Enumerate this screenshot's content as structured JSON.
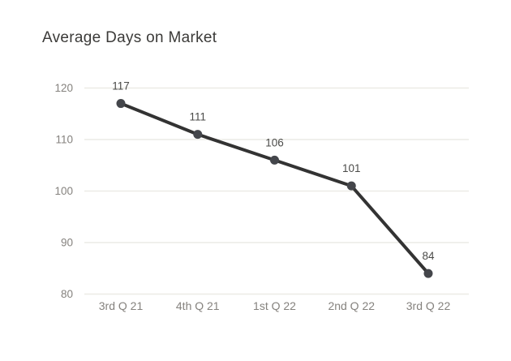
{
  "title": "Average Days on Market",
  "colors": {
    "background": "#ffffff",
    "title": "#3b3a38",
    "grid": "#ecebe6",
    "line": "#333333",
    "marker": "#44464b",
    "axis_label": "#85827e",
    "data_label": "#4b4b49"
  },
  "chart_data": {
    "type": "line",
    "title": "Average Days on Market",
    "categories": [
      "3rd Q 21",
      "4th Q 21",
      "1st Q 22",
      "2nd Q 22",
      "3rd Q 22"
    ],
    "values": [
      117,
      111,
      106,
      101,
      84
    ],
    "data_labels": [
      "117",
      "111",
      "106",
      "101",
      "84"
    ],
    "xlabel": "",
    "ylabel": "",
    "ylim": [
      80,
      120
    ],
    "yticks": [
      80,
      90,
      100,
      110,
      120
    ],
    "grid": true,
    "legend": "none"
  }
}
